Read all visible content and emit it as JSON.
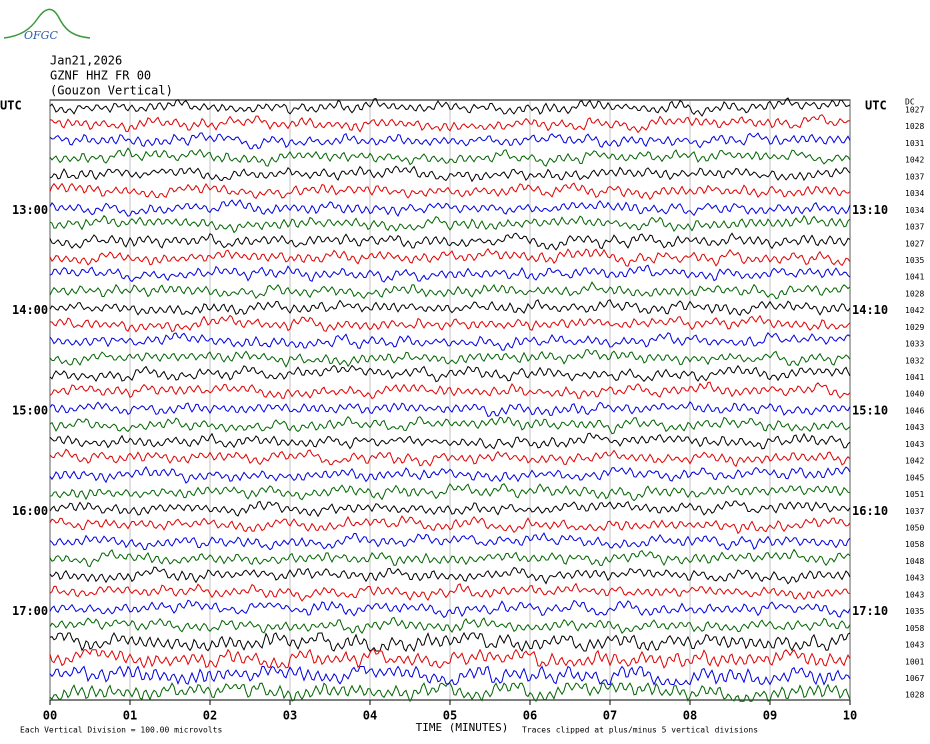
{
  "chart_data": {
    "type": "helicorder",
    "logo": "OFGC",
    "title_lines": [
      "Jan21,2026",
      "GZNF HHZ FR 00",
      "(Gouzon Vertical)"
    ],
    "left_axis_label": "UTC",
    "right_axis_label": "UTC",
    "right_header": "DC",
    "xlabel": "TIME (MINUTES)",
    "xlim": [
      0,
      10
    ],
    "xticks": [
      {
        "value": 0,
        "label": "00"
      },
      {
        "value": 1,
        "label": "01"
      },
      {
        "value": 2,
        "label": "02"
      },
      {
        "value": 3,
        "label": "03"
      },
      {
        "value": 4,
        "label": "04"
      },
      {
        "value": 5,
        "label": "05"
      },
      {
        "value": 6,
        "label": "06"
      },
      {
        "value": 7,
        "label": "07"
      },
      {
        "value": 8,
        "label": "08"
      },
      {
        "value": 9,
        "label": "09"
      },
      {
        "value": 10,
        "label": "10"
      }
    ],
    "grid": true,
    "colors": [
      "#000000",
      "#e00000",
      "#0000e0",
      "#006400"
    ],
    "left_labels": [
      null,
      null,
      null,
      null,
      null,
      null,
      "13:00",
      null,
      null,
      null,
      null,
      null,
      "14:00",
      null,
      null,
      null,
      null,
      null,
      "15:00",
      null,
      null,
      null,
      null,
      null,
      "16:00",
      null,
      null,
      null,
      null,
      null,
      "17:00",
      null,
      null,
      null,
      null,
      null
    ],
    "right_labels": [
      null,
      null,
      null,
      null,
      null,
      null,
      "13:10",
      null,
      null,
      null,
      null,
      null,
      "14:10",
      null,
      null,
      null,
      null,
      null,
      "15:10",
      null,
      null,
      null,
      null,
      null,
      "16:10",
      null,
      null,
      null,
      null,
      null,
      "17:10",
      null,
      null,
      null,
      null,
      null
    ],
    "dc": [
      1027,
      1028,
      1031,
      1042,
      1037,
      1034,
      1034,
      1037,
      1027,
      1035,
      1041,
      1028,
      1042,
      1029,
      1033,
      1032,
      1041,
      1040,
      1046,
      1043,
      1043,
      1042,
      1045,
      1051,
      1037,
      1050,
      1058,
      1048,
      1043,
      1043,
      1035,
      1058,
      1043,
      1001,
      1067,
      1028
    ],
    "note_left": "Each Vertical Division =  100.00 microvolts",
    "note_right": "Traces clipped at plus/minus 5 vertical divisions"
  }
}
